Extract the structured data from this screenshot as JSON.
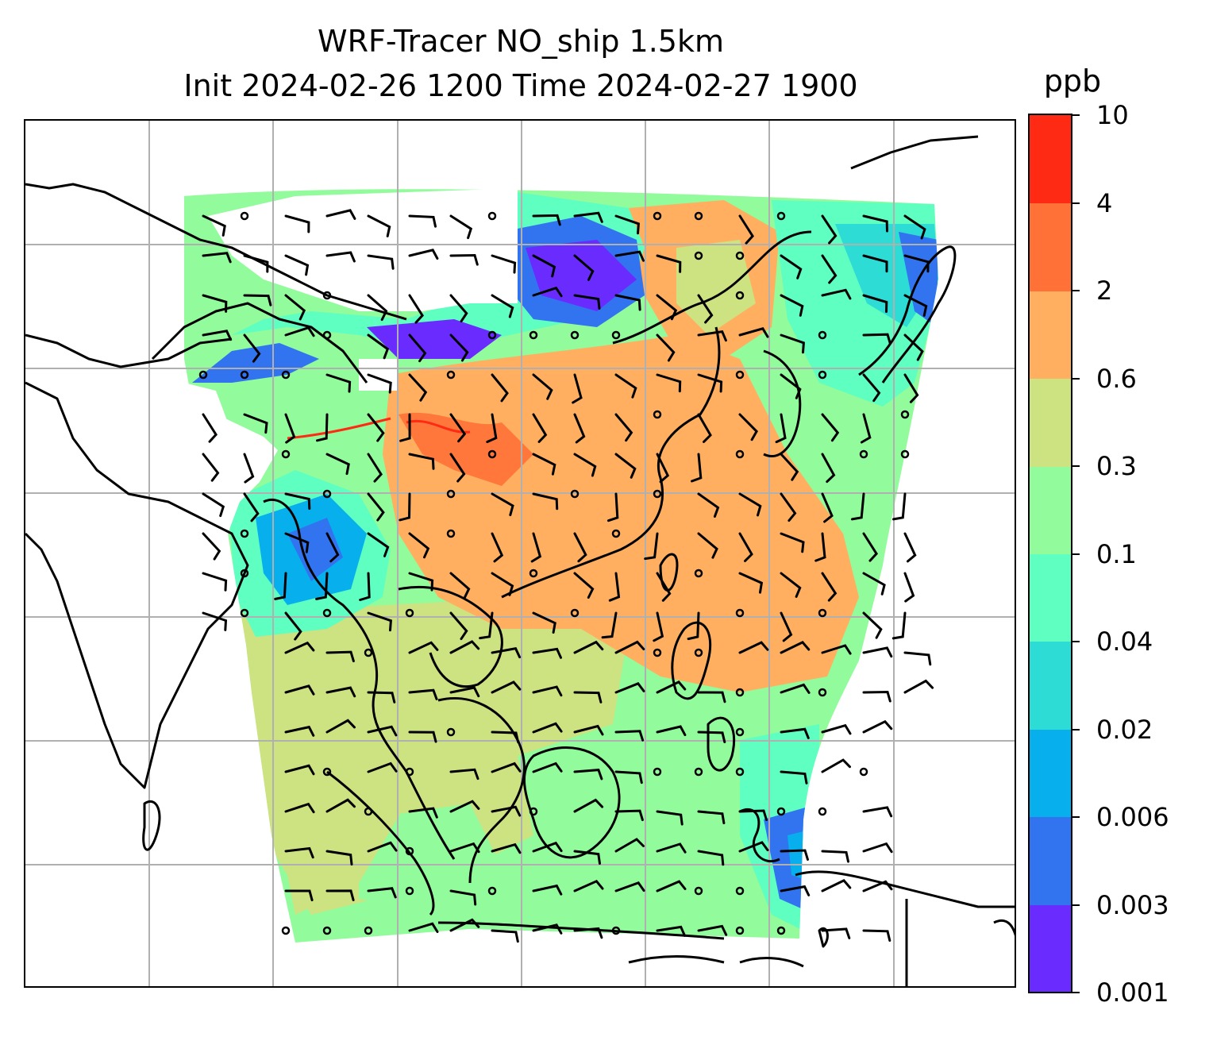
{
  "title": {
    "line1": "WRF-Tracer NO_ship 1.5km",
    "line2": "Init 2024-02-26 1200 Time 2024-02-27 1900"
  },
  "colorbar": {
    "unit": "ppb",
    "ticks": [
      "0.001",
      "0.003",
      "0.006",
      "0.02",
      "0.04",
      "0.1",
      "0.3",
      "0.6",
      "2",
      "4",
      "10"
    ],
    "colors": [
      "#6a2bff",
      "#3273f0",
      "#07b0ec",
      "#2ddcd5",
      "#5effc0",
      "#92fb9b",
      "#cde281",
      "#ffaf5f",
      "#ff7136",
      "#ff2a14"
    ]
  },
  "map": {
    "field": "NO_ship",
    "level": "1.5km",
    "units": "ppb",
    "gridlines": true,
    "coastlines": true,
    "wind_barbs": true
  }
}
